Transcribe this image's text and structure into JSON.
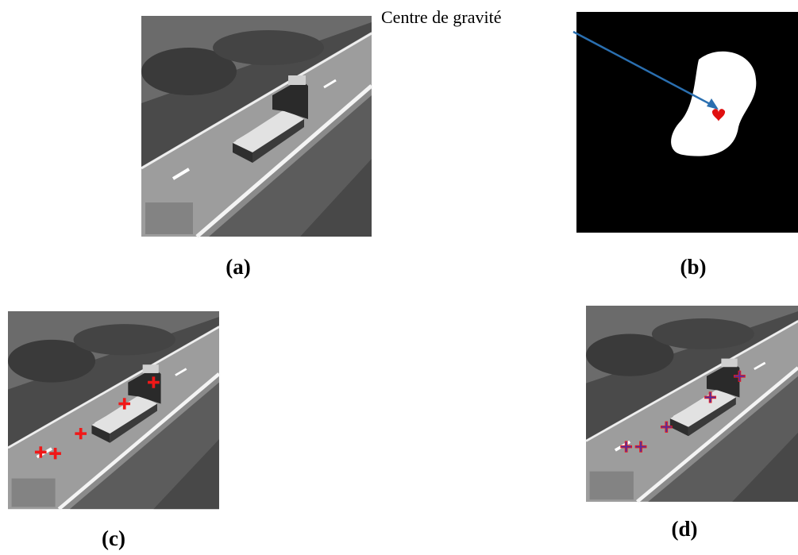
{
  "annotation": "Centre de gravité",
  "panels": [
    {
      "label": "(a)"
    },
    {
      "label": "(b)"
    },
    {
      "label": "(c)"
    },
    {
      "label": "(d)"
    }
  ]
}
